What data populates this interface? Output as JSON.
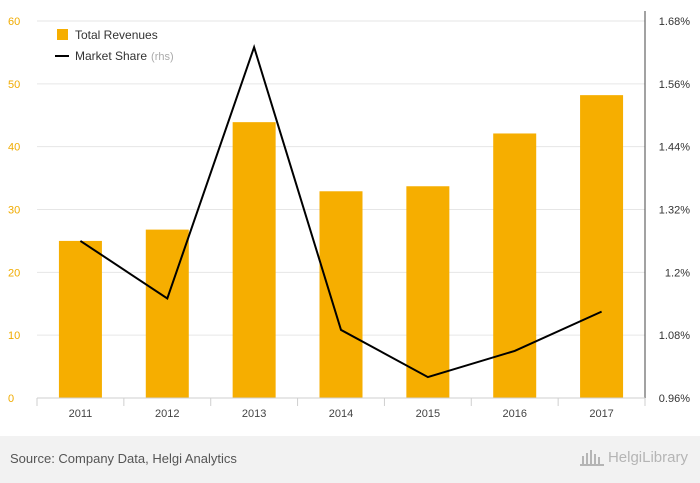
{
  "chart_data": {
    "type": "bar+line",
    "categories": [
      "2011",
      "2012",
      "2013",
      "2014",
      "2015",
      "2016",
      "2017"
    ],
    "series": [
      {
        "name": "Total Revenues",
        "type": "bar",
        "axis": "left",
        "color": "#f6ae00",
        "values": [
          25.0,
          26.8,
          43.9,
          32.9,
          33.7,
          42.1,
          48.2
        ]
      },
      {
        "name": "Market Share",
        "name_suffix": "(rhs)",
        "type": "line",
        "axis": "right",
        "color": "#000000",
        "values": [
          1.26,
          1.15,
          1.63,
          1.09,
          1.0,
          1.05,
          1.125
        ]
      }
    ],
    "left_axis": {
      "ylim": [
        0,
        60
      ],
      "ticks": [
        "0",
        "10",
        "20",
        "30",
        "40",
        "50",
        "60"
      ],
      "color": "#f0ab00"
    },
    "right_axis": {
      "ylim": [
        0.96,
        1.68
      ],
      "ticks": [
        "0.96%",
        "1.08%",
        "1.2%",
        "1.32%",
        "1.44%",
        "1.56%",
        "1.68%"
      ]
    },
    "grid": true,
    "legend_position": "top-left"
  },
  "footer": {
    "source": "Source: Company Data, Helgi Analytics",
    "brand": "HelgiLibrary",
    "brand_icon": "helgi-library-logo-icon"
  }
}
